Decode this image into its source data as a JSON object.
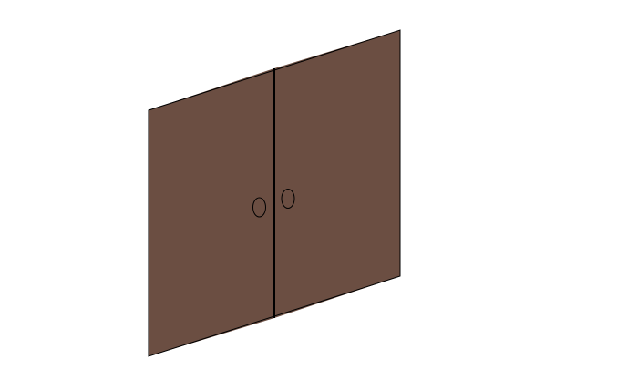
{
  "scene": {
    "background_color": "#ffffff",
    "object": "double-door",
    "panel_color": "#6b4e42",
    "edge_color": "#000000",
    "panels": [
      {
        "name": "left-door-panel"
      },
      {
        "name": "right-door-panel"
      }
    ],
    "handles": [
      {
        "name": "left-door-knob"
      },
      {
        "name": "right-door-knob"
      }
    ]
  }
}
